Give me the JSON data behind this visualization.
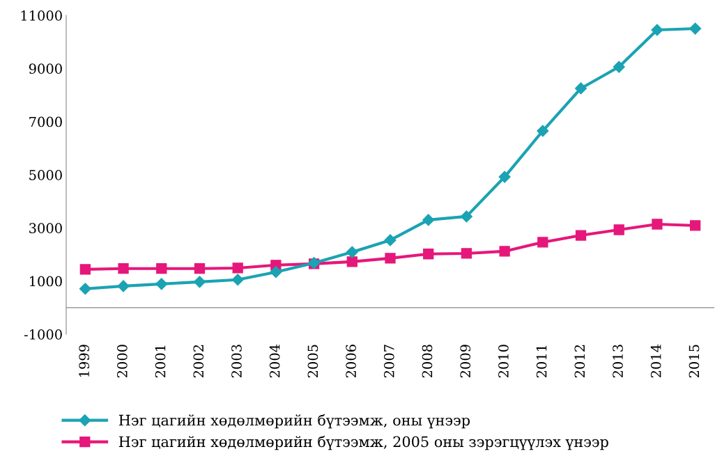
{
  "chart_data": {
    "type": "line",
    "categories": [
      "1999",
      "2000",
      "2001",
      "2002",
      "2003",
      "2004",
      "2005",
      "2006",
      "2007",
      "2008",
      "2009",
      "2010",
      "2011",
      "2012",
      "2013",
      "2014",
      "2015"
    ],
    "series": [
      {
        "name": "Нэг цагийн хөдөлмөрийн бүтээмж, оны үнээр",
        "color": "#1aa3b3",
        "marker": "diamond",
        "values": [
          710,
          810,
          890,
          970,
          1050,
          1340,
          1680,
          2090,
          2540,
          3300,
          3430,
          4920,
          6650,
          8250,
          9060,
          10450,
          10500
        ]
      },
      {
        "name": "Нэг цагийн хөдөлмөрийн бүтээмж, 2005 оны зэрэгцүүлэх үнээр",
        "color": "#e6177a",
        "marker": "square",
        "values": [
          1440,
          1470,
          1470,
          1470,
          1490,
          1600,
          1650,
          1730,
          1860,
          2020,
          2040,
          2120,
          2460,
          2720,
          2930,
          3140,
          3090
        ]
      }
    ],
    "ylim": [
      -1000,
      11000
    ],
    "yticks": [
      -1000,
      1000,
      3000,
      5000,
      7000,
      9000,
      11000
    ],
    "grid": false,
    "legend": "bottom",
    "line_style": "solid"
  }
}
